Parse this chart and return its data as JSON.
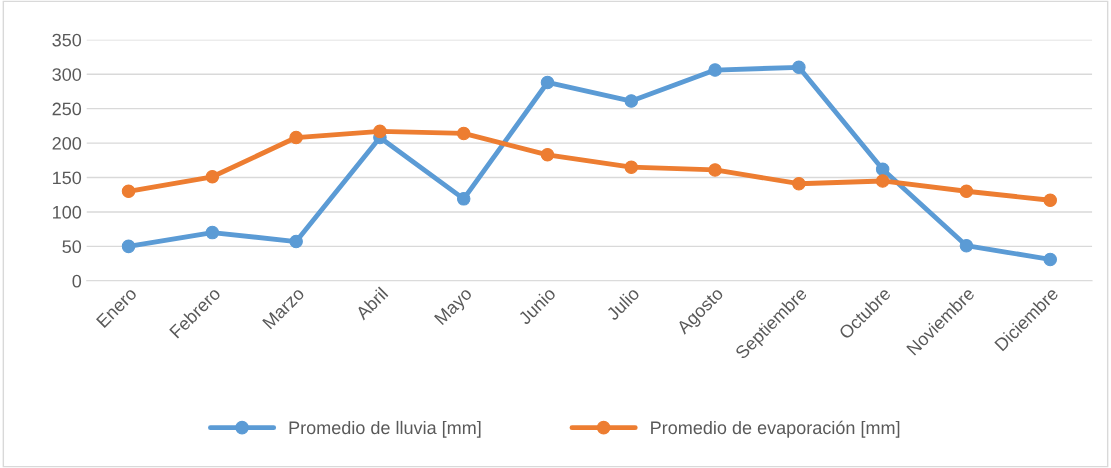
{
  "chart_data": {
    "type": "line",
    "categories": [
      "Enero",
      "Febrero",
      "Marzo",
      "Abril",
      "Mayo",
      "Junio",
      "Julio",
      "Agosto",
      "Septiembre",
      "Octubre",
      "Noviembre",
      "Diciembre"
    ],
    "series": [
      {
        "name": "Promedio de lluvia [mm]",
        "color": "#5b9bd5",
        "values": [
          50,
          70,
          57,
          208,
          119,
          288,
          261,
          306,
          310,
          162,
          51,
          31
        ]
      },
      {
        "name": "Promedio de evaporación [mm]",
        "color": "#ed7d31",
        "values": [
          130,
          151,
          208,
          217,
          214,
          183,
          165,
          161,
          141,
          145,
          130,
          117
        ]
      }
    ],
    "ylim": [
      0,
      350
    ],
    "yticks": [
      0,
      50,
      100,
      150,
      200,
      250,
      300,
      350
    ],
    "grid": "y",
    "legend": "bottom",
    "marker": "circle",
    "line_style": "solid"
  }
}
